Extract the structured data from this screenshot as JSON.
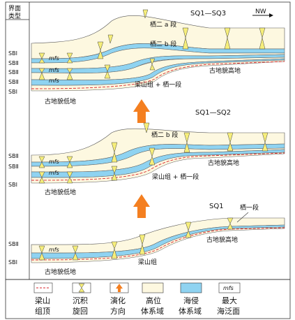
{
  "header": {
    "col_label_line1": "界面",
    "col_label_line2": "类型"
  },
  "north_arrow": "NW",
  "panels": {
    "p1": {
      "title": "SQ1—SQ3",
      "upper_label_a": "栖二 a 段",
      "upper_label_b": "栖二 b 段",
      "high_label": "古地貌高地",
      "low_label": "古地貌低地",
      "formation_label": "梁山组 + 栖一段",
      "sb_labels": [
        "SBI",
        "SBⅡ",
        "SBⅡ",
        "SBⅡ",
        "SBI"
      ],
      "mfs_labels": [
        "mfs",
        "mfs",
        "mfs"
      ]
    },
    "p2": {
      "title": "SQ1—SQ2",
      "upper_label": "栖二 b 段",
      "high_label": "古地貌高地",
      "low_label": "古地貌低地",
      "formation_label": "梁山组 + 栖一段",
      "sb_labels": [
        "SBⅡ",
        "SBⅡ",
        "SBI"
      ],
      "mfs_labels": [
        "mfs",
        "mfs"
      ]
    },
    "p3": {
      "title": "SQ1",
      "upper_label": "栖一段",
      "high_label": "古地貌高地",
      "low_label": "古地貌低地",
      "formation_label": "梁山组",
      "sb_labels": [
        "SBⅡ",
        "SBI"
      ],
      "mfs_labels": [
        "mfs"
      ]
    }
  },
  "legend": [
    {
      "icon": "dashed-red-line-icon",
      "line1": "梁山",
      "line2": "组顶"
    },
    {
      "icon": "hourglass-icon",
      "line1": "沉积",
      "line2": "旋回"
    },
    {
      "icon": "orange-arrow-icon",
      "line1": "演化",
      "line2": "方向"
    },
    {
      "icon": "cream-box-icon",
      "line1": "高位",
      "line2": "体系域"
    },
    {
      "icon": "blue-box-icon",
      "line1": "海侵",
      "line2": "体系域"
    },
    {
      "icon": "mfs-box-icon",
      "label": "mfs",
      "line1": "最大",
      "line2": "海泛面"
    }
  ],
  "colors": {
    "hst": "#fdf8e0",
    "tst": "#8fd3f1",
    "arrow": "#f47f20",
    "dashed": "#d9242b",
    "tri": "#f6ee7a"
  }
}
